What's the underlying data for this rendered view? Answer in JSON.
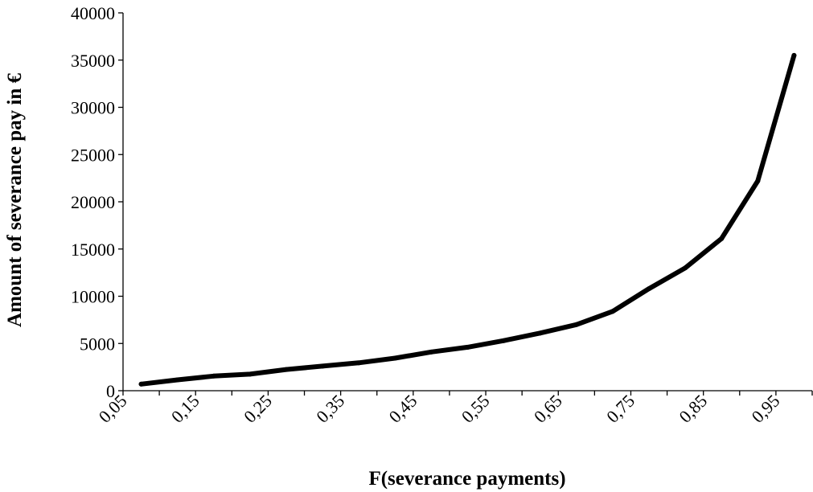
{
  "chart_data": {
    "type": "line",
    "xlabel": "F(severance payments)",
    "ylabel": "Amount of severance pay in €",
    "ylim": [
      0,
      40000
    ],
    "yticks": [
      0,
      5000,
      10000,
      15000,
      20000,
      25000,
      30000,
      35000,
      40000
    ],
    "ytick_labels": [
      "0",
      "5000",
      "10000",
      "15000",
      "20000",
      "25000",
      "30000",
      "35000",
      "40000"
    ],
    "xlim": [
      0.05,
      1.0
    ],
    "xticks": [
      0.05,
      0.1,
      0.15,
      0.2,
      0.25,
      0.3,
      0.35,
      0.4,
      0.45,
      0.5,
      0.55,
      0.6,
      0.65,
      0.7,
      0.75,
      0.8,
      0.85,
      0.9,
      0.95,
      1.0
    ],
    "xtick_labels": [
      "0,05",
      "0,15",
      "0,25",
      "0,35",
      "0,45",
      "0,55",
      "0,65",
      "0,75",
      "0,85",
      "0,95"
    ],
    "xtick_label_values": [
      0.05,
      0.15,
      0.25,
      0.35,
      0.45,
      0.55,
      0.65,
      0.75,
      0.85,
      0.95
    ],
    "grid": false,
    "series": [
      {
        "x": [
          0.075,
          0.125,
          0.175,
          0.225,
          0.275,
          0.325,
          0.375,
          0.425,
          0.475,
          0.525,
          0.575,
          0.625,
          0.675,
          0.725,
          0.775,
          0.825,
          0.875,
          0.925,
          0.975
        ],
        "y": [
          700,
          1150,
          1550,
          1750,
          2250,
          2600,
          2950,
          3450,
          4100,
          4600,
          5300,
          6100,
          7000,
          8400,
          10800,
          13000,
          16100,
          22200,
          35500
        ]
      }
    ]
  }
}
